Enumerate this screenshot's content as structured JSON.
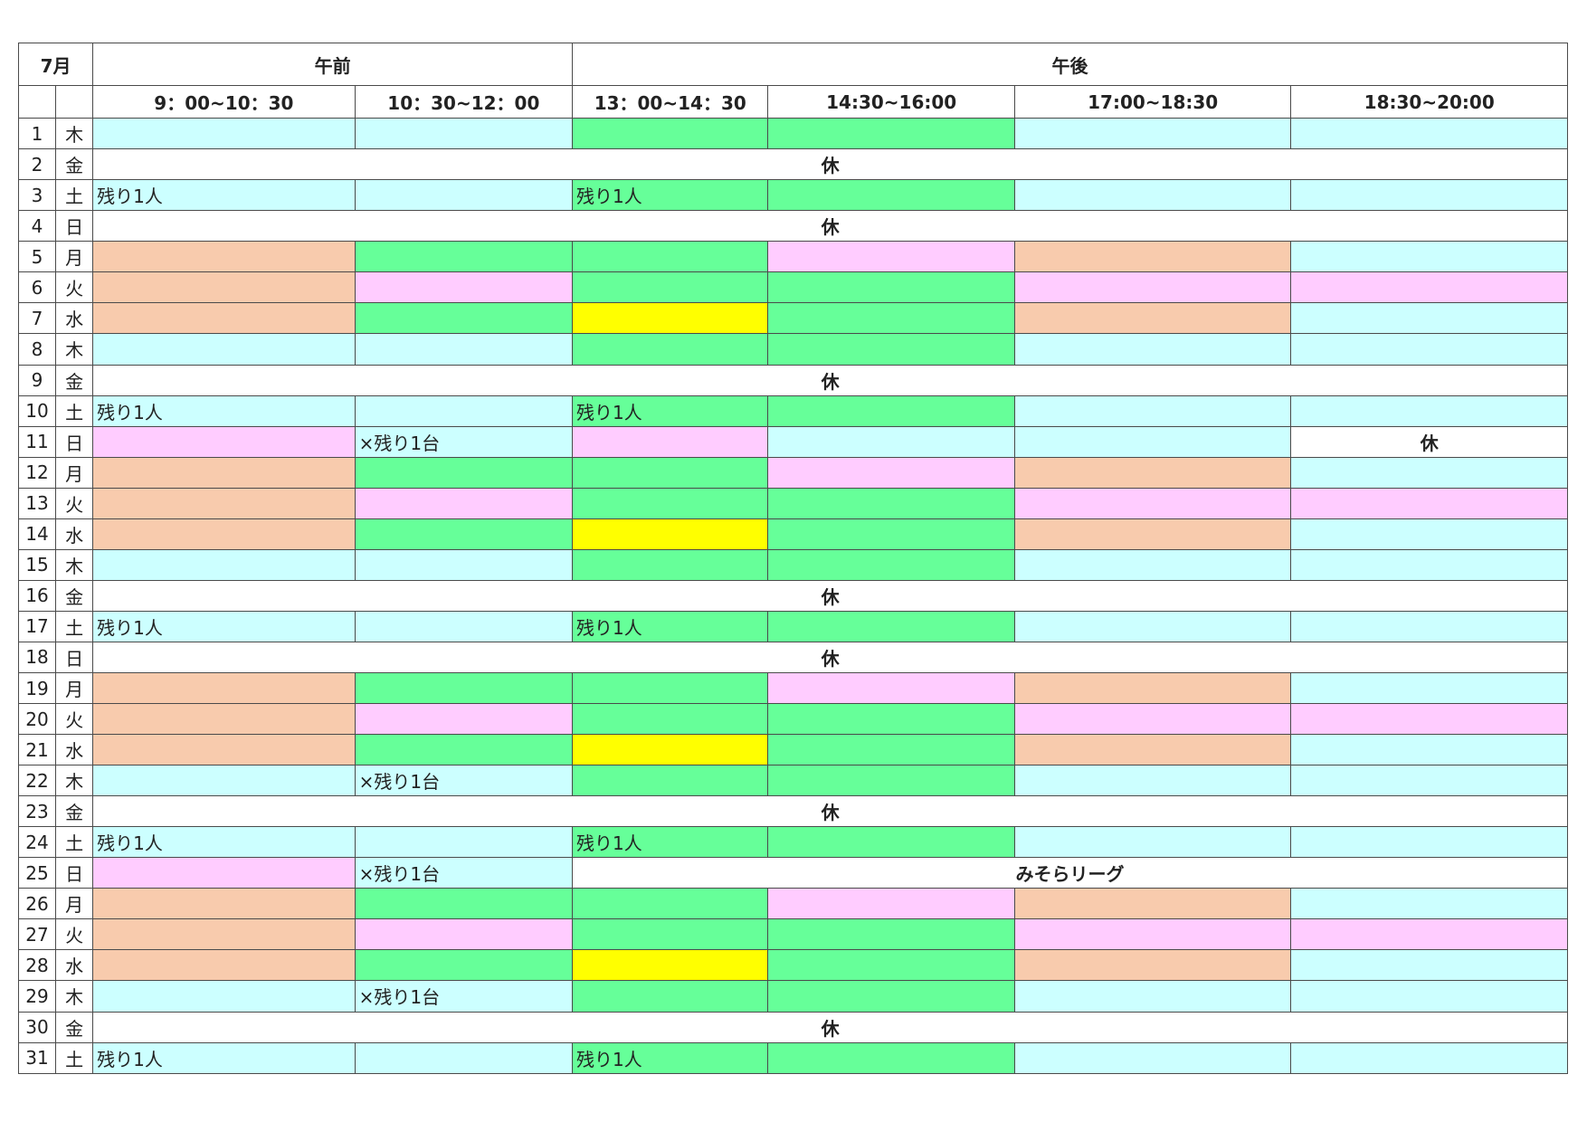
{
  "month": "7月",
  "periods": [
    "午前",
    "午後"
  ],
  "time_slots": [
    "9：00~10：30",
    "10：30~12：00",
    "13：00~14：30",
    "14:30~16:00",
    "17:00~18:30",
    "18:30~20:00"
  ],
  "closed_label": "休",
  "colors": {
    "cyan": "#ccffff",
    "green": "#66ff99",
    "peach": "#f8cbad",
    "pink": "#ffccff",
    "yellow": "#ffff00",
    "white": "#ffffff",
    "sunday_text": "#d42020",
    "closed_text": "#e00000"
  },
  "days": [
    {
      "num": "1",
      "wd": "木",
      "cells": [
        {
          "c": "cyan"
        },
        {
          "c": "cyan"
        },
        {
          "c": "green"
        },
        {
          "c": "green"
        },
        {
          "c": "cyan"
        },
        {
          "c": "cyan"
        }
      ]
    },
    {
      "num": "2",
      "wd": "金",
      "closed": "休"
    },
    {
      "num": "3",
      "wd": "土",
      "cells": [
        {
          "c": "cyan",
          "t": "残り1人"
        },
        {
          "c": "cyan"
        },
        {
          "c": "green",
          "t": "残り1人"
        },
        {
          "c": "green"
        },
        {
          "c": "cyan"
        },
        {
          "c": "cyan"
        }
      ]
    },
    {
      "num": "4",
      "wd": "日",
      "sun": true,
      "closed": "休"
    },
    {
      "num": "5",
      "wd": "月",
      "cells": [
        {
          "c": "peach"
        },
        {
          "c": "green"
        },
        {
          "c": "green"
        },
        {
          "c": "pink"
        },
        {
          "c": "peach"
        },
        {
          "c": "cyan"
        }
      ]
    },
    {
      "num": "6",
      "wd": "火",
      "cells": [
        {
          "c": "peach"
        },
        {
          "c": "pink"
        },
        {
          "c": "green"
        },
        {
          "c": "green"
        },
        {
          "c": "pink"
        },
        {
          "c": "pink"
        }
      ]
    },
    {
      "num": "7",
      "wd": "水",
      "cells": [
        {
          "c": "peach"
        },
        {
          "c": "green"
        },
        {
          "c": "yellow"
        },
        {
          "c": "green"
        },
        {
          "c": "peach"
        },
        {
          "c": "cyan"
        }
      ]
    },
    {
      "num": "8",
      "wd": "木",
      "cells": [
        {
          "c": "cyan"
        },
        {
          "c": "cyan"
        },
        {
          "c": "green"
        },
        {
          "c": "green"
        },
        {
          "c": "cyan"
        },
        {
          "c": "cyan"
        }
      ]
    },
    {
      "num": "9",
      "wd": "金",
      "closed": "休"
    },
    {
      "num": "10",
      "wd": "土",
      "cells": [
        {
          "c": "cyan",
          "t": "残り1人"
        },
        {
          "c": "cyan"
        },
        {
          "c": "green",
          "t": "残り1人"
        },
        {
          "c": "green"
        },
        {
          "c": "cyan"
        },
        {
          "c": "cyan"
        }
      ]
    },
    {
      "num": "11",
      "wd": "日",
      "sun_weekday_only": true,
      "cells": [
        {
          "c": "pink"
        },
        {
          "c": "cyan",
          "t": "×残り1台"
        },
        {
          "c": "pink"
        },
        {
          "c": "cyan"
        },
        {
          "c": "cyan"
        },
        {
          "c": "white",
          "t": "休",
          "closed_style": true
        }
      ]
    },
    {
      "num": "12",
      "wd": "月",
      "cells": [
        {
          "c": "peach"
        },
        {
          "c": "green"
        },
        {
          "c": "green"
        },
        {
          "c": "pink"
        },
        {
          "c": "peach"
        },
        {
          "c": "cyan"
        }
      ]
    },
    {
      "num": "13",
      "wd": "火",
      "cells": [
        {
          "c": "peach"
        },
        {
          "c": "pink"
        },
        {
          "c": "green"
        },
        {
          "c": "green"
        },
        {
          "c": "pink"
        },
        {
          "c": "pink"
        }
      ]
    },
    {
      "num": "14",
      "wd": "水",
      "cells": [
        {
          "c": "peach"
        },
        {
          "c": "green"
        },
        {
          "c": "yellow"
        },
        {
          "c": "green"
        },
        {
          "c": "peach"
        },
        {
          "c": "cyan"
        }
      ]
    },
    {
      "num": "15",
      "wd": "木",
      "cells": [
        {
          "c": "cyan"
        },
        {
          "c": "cyan"
        },
        {
          "c": "green"
        },
        {
          "c": "green"
        },
        {
          "c": "cyan"
        },
        {
          "c": "cyan"
        }
      ]
    },
    {
      "num": "16",
      "wd": "金",
      "closed": "休"
    },
    {
      "num": "17",
      "wd": "土",
      "cells": [
        {
          "c": "cyan",
          "t": "残り1人"
        },
        {
          "c": "cyan"
        },
        {
          "c": "green",
          "t": "残り1人"
        },
        {
          "c": "green"
        },
        {
          "c": "cyan"
        },
        {
          "c": "cyan"
        }
      ]
    },
    {
      "num": "18",
      "wd": "日",
      "sun": true,
      "closed": "休"
    },
    {
      "num": "19",
      "wd": "月",
      "cells": [
        {
          "c": "peach"
        },
        {
          "c": "green"
        },
        {
          "c": "green"
        },
        {
          "c": "pink"
        },
        {
          "c": "peach"
        },
        {
          "c": "cyan"
        }
      ]
    },
    {
      "num": "20",
      "wd": "火",
      "cells": [
        {
          "c": "peach"
        },
        {
          "c": "pink"
        },
        {
          "c": "green"
        },
        {
          "c": "green"
        },
        {
          "c": "pink"
        },
        {
          "c": "pink"
        }
      ]
    },
    {
      "num": "21",
      "wd": "水",
      "cells": [
        {
          "c": "peach"
        },
        {
          "c": "green"
        },
        {
          "c": "yellow"
        },
        {
          "c": "green"
        },
        {
          "c": "peach"
        },
        {
          "c": "cyan"
        }
      ]
    },
    {
      "num": "22",
      "wd": "木",
      "cells": [
        {
          "c": "cyan"
        },
        {
          "c": "cyan",
          "t": "×残り1台"
        },
        {
          "c": "green"
        },
        {
          "c": "green"
        },
        {
          "c": "cyan"
        },
        {
          "c": "cyan"
        }
      ]
    },
    {
      "num": "23",
      "wd": "金",
      "closed": "休"
    },
    {
      "num": "24",
      "wd": "土",
      "cells": [
        {
          "c": "cyan",
          "t": "残り1人"
        },
        {
          "c": "cyan"
        },
        {
          "c": "green",
          "t": "残り1人"
        },
        {
          "c": "green"
        },
        {
          "c": "cyan"
        },
        {
          "c": "cyan"
        }
      ]
    },
    {
      "num": "25",
      "wd": "日",
      "sun": true,
      "cells": [
        {
          "c": "pink"
        },
        {
          "c": "cyan",
          "t": "×残り1台"
        }
      ],
      "afternoon_event": "みそらリーグ"
    },
    {
      "num": "26",
      "wd": "月",
      "cells": [
        {
          "c": "peach"
        },
        {
          "c": "green"
        },
        {
          "c": "green"
        },
        {
          "c": "pink"
        },
        {
          "c": "peach"
        },
        {
          "c": "cyan"
        }
      ]
    },
    {
      "num": "27",
      "wd": "火",
      "cells": [
        {
          "c": "peach"
        },
        {
          "c": "pink"
        },
        {
          "c": "green"
        },
        {
          "c": "green"
        },
        {
          "c": "pink"
        },
        {
          "c": "pink"
        }
      ]
    },
    {
      "num": "28",
      "wd": "水",
      "cells": [
        {
          "c": "peach"
        },
        {
          "c": "green"
        },
        {
          "c": "yellow"
        },
        {
          "c": "green"
        },
        {
          "c": "peach"
        },
        {
          "c": "cyan"
        }
      ]
    },
    {
      "num": "29",
      "wd": "木",
      "cells": [
        {
          "c": "cyan"
        },
        {
          "c": "cyan",
          "t": "×残り1台"
        },
        {
          "c": "green"
        },
        {
          "c": "green"
        },
        {
          "c": "cyan"
        },
        {
          "c": "cyan"
        }
      ]
    },
    {
      "num": "30",
      "wd": "金",
      "closed": "休"
    },
    {
      "num": "31",
      "wd": "土",
      "cells": [
        {
          "c": "cyan",
          "t": "残り1人"
        },
        {
          "c": "cyan"
        },
        {
          "c": "green",
          "t": "残り1人"
        },
        {
          "c": "green"
        },
        {
          "c": "cyan"
        },
        {
          "c": "cyan"
        }
      ]
    }
  ]
}
